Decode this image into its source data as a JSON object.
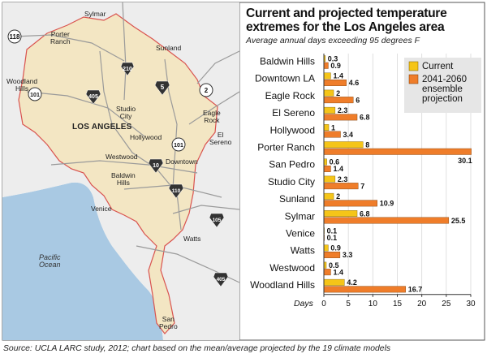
{
  "colors": {
    "current": "#f5c518",
    "projected": "#ef7d2a",
    "land": "#f3e6c3",
    "water": "#a9c9e3",
    "city_border": "#d9534f"
  },
  "map": {
    "labels": {
      "sylmar": "Sylmar",
      "porter_ranch": "Porter\nRanch",
      "sunland": "Sunland",
      "woodland_hills": "Woodland\nHills",
      "los_angeles": "LOS ANGELES",
      "studio_city": "Studio\nCity",
      "eagle_rock": "Eagle\nRock",
      "el_sereno": "El\nSereno",
      "hollywood": "Hollywood",
      "westwood": "Westwood",
      "downtown": "Downtown",
      "baldwin_hills": "Baldwin\nHills",
      "venice": "Venice",
      "watts": "Watts",
      "pacific_ocean": "Pacific\nOcean",
      "san_pedro": "San\nPedro"
    },
    "highways": {
      "h118": "118",
      "h210": "210",
      "h405_north": "405",
      "h101_west": "101",
      "h5": "5",
      "h2": "2",
      "h101_central": "101",
      "h10": "10",
      "h110": "110",
      "h105": "105",
      "h405_south": "405"
    }
  },
  "title": "Current and projected temperature extremes for the Los Angeles area",
  "subtitle": "Average annual days exceeding 95 degrees F",
  "source": "Source: UCLA LARC study, 2012; chart based on the mean/average projected by the 19 climate models",
  "chart_data": {
    "type": "bar",
    "orientation": "horizontal",
    "title": "Current and projected temperature extremes for the Los Angeles area",
    "subtitle": "Average annual days exceeding 95 degrees F",
    "xlabel": "Days",
    "ylabel": "",
    "xlim": [
      0,
      30
    ],
    "xticks": [
      0,
      5,
      10,
      15,
      20,
      25,
      30
    ],
    "legend_position": "top-right",
    "categories": [
      "Baldwin Hills",
      "Downtown LA",
      "Eagle Rock",
      "El Sereno",
      "Hollywood",
      "Porter Ranch",
      "San Pedro",
      "Studio City",
      "Sunland",
      "Sylmar",
      "Venice",
      "Watts",
      "Westwood",
      "Woodland Hills"
    ],
    "series": [
      {
        "name": "Current",
        "values": [
          0.3,
          1.4,
          2,
          2.3,
          1,
          8,
          0.6,
          2.3,
          2,
          6.8,
          0.1,
          0.9,
          0.5,
          4.2
        ]
      },
      {
        "name": "2041-2060 ensemble projection",
        "values": [
          0.9,
          4.6,
          6,
          6.8,
          3.4,
          30.1,
          1.4,
          7,
          10.9,
          25.5,
          0.1,
          3.3,
          1.4,
          16.7
        ]
      }
    ],
    "value_labels": [
      [
        "0.3",
        "1.4",
        "2",
        "2.3",
        "1",
        "8",
        "0.6",
        "2.3",
        "2",
        "6.8",
        "0.1",
        "0.9",
        "0.5",
        "4.2"
      ],
      [
        "0.9",
        "4.6",
        "6",
        "6.8",
        "3.4",
        "30.1",
        "1.4",
        "7",
        "10.9",
        "25.5",
        "0.1",
        "3.3",
        "1.4",
        "16.7"
      ]
    ],
    "legend": [
      "Current",
      "2041-2060\nensemble\nprojection"
    ]
  }
}
